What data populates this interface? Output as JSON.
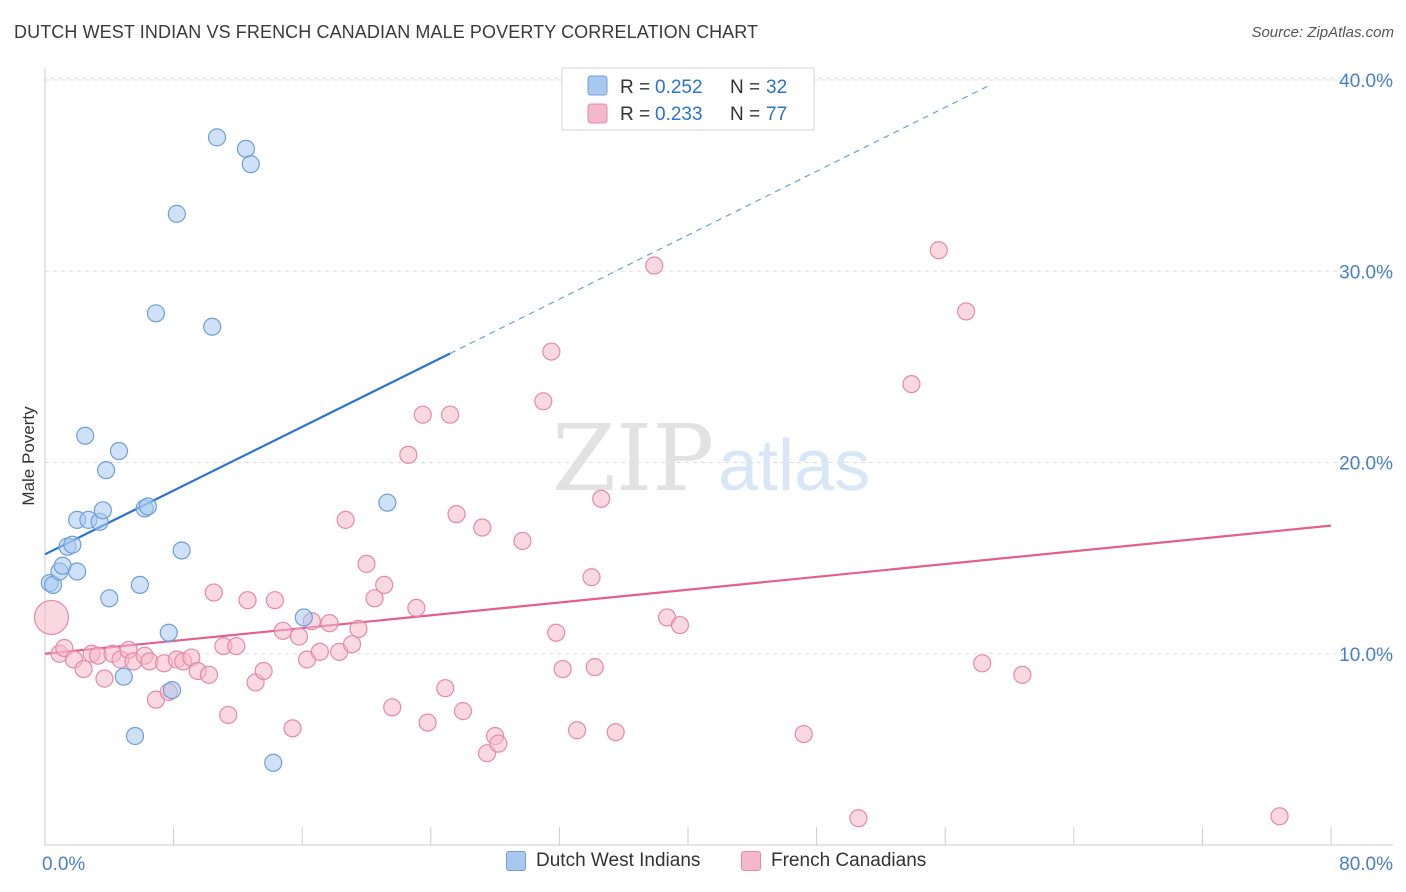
{
  "title": "DUTCH WEST INDIAN VS FRENCH CANADIAN MALE POVERTY CORRELATION CHART",
  "source": "Source: ZipAtlas.com",
  "watermark": {
    "zip": "ZIP",
    "atlas": "atlas"
  },
  "colors": {
    "blue_fill": "#a8c8ef",
    "blue_stroke": "#6f9fd8",
    "blue_line": "#2b73d0",
    "pink_fill": "#f5b8cb",
    "pink_stroke": "#e68aa8",
    "pink_line": "#e0608e",
    "tick_label": "#4a7fc8",
    "grid": "#dddddd"
  },
  "legend": {
    "items": [
      {
        "r_label": "R = ",
        "r_value": "0.252",
        "n_label": "N = ",
        "n_value": "32",
        "color": "#a8c8ef",
        "stroke": "#6f9fd8"
      },
      {
        "r_label": "R = ",
        "r_value": "0.233",
        "n_label": "N = ",
        "n_value": "77",
        "color": "#f5b8cb",
        "stroke": "#e68aa8"
      }
    ]
  },
  "chart_data": {
    "type": "scatter",
    "xlabel": "",
    "ylabel": "Male Poverty",
    "xlim": [
      0,
      80
    ],
    "ylim": [
      0,
      40
    ],
    "x_tick_labels": [
      {
        "value": 0,
        "label": "0.0%"
      },
      {
        "value": 80,
        "label": "80.0%"
      }
    ],
    "y_tick_labels": [
      {
        "value": 10,
        "label": "10.0%"
      },
      {
        "value": 20,
        "label": "20.0%"
      },
      {
        "value": 30,
        "label": "30.0%"
      },
      {
        "value": 40,
        "label": "40.0%"
      }
    ],
    "legend_position": "top-center",
    "grid": true,
    "series": [
      {
        "name": "Dutch West Indians",
        "color": "#a8c8ef",
        "trend": {
          "x0": 0,
          "y0": 15.2,
          "x1": 25.2,
          "y1": 25.7,
          "dashed_to_x": 58.7,
          "dashed_to_y": 39.7
        },
        "points": [
          [
            0.3,
            13.7
          ],
          [
            0.5,
            13.6
          ],
          [
            0.9,
            14.3
          ],
          [
            1.1,
            14.6
          ],
          [
            1.4,
            15.6
          ],
          [
            1.7,
            15.7
          ],
          [
            2.0,
            14.3
          ],
          [
            2.0,
            17.0
          ],
          [
            2.5,
            21.4
          ],
          [
            2.7,
            17.0
          ],
          [
            3.4,
            16.9
          ],
          [
            3.6,
            17.5
          ],
          [
            3.8,
            19.6
          ],
          [
            4.0,
            12.9
          ],
          [
            4.6,
            20.6
          ],
          [
            4.9,
            8.8
          ],
          [
            5.6,
            5.7
          ],
          [
            5.9,
            13.6
          ],
          [
            6.2,
            17.6
          ],
          [
            6.4,
            17.7
          ],
          [
            6.9,
            27.8
          ],
          [
            7.7,
            11.1
          ],
          [
            7.9,
            8.1
          ],
          [
            8.2,
            33.0
          ],
          [
            8.5,
            15.4
          ],
          [
            10.4,
            27.1
          ],
          [
            10.7,
            37.0
          ],
          [
            12.5,
            36.4
          ],
          [
            12.8,
            35.6
          ],
          [
            14.2,
            4.3
          ],
          [
            16.1,
            11.9
          ],
          [
            21.3,
            17.9
          ]
        ]
      },
      {
        "name": "French Canadians",
        "color": "#f5b8cb",
        "trend": {
          "x0": 0,
          "y0": 10.0,
          "x1": 80,
          "y1": 16.7
        },
        "points": [
          [
            0.4,
            11.9
          ],
          [
            0.9,
            10.0
          ],
          [
            1.2,
            10.3
          ],
          [
            1.8,
            9.7
          ],
          [
            2.4,
            9.2
          ],
          [
            2.9,
            10.0
          ],
          [
            3.3,
            9.9
          ],
          [
            3.7,
            8.7
          ],
          [
            4.2,
            10.0
          ],
          [
            4.7,
            9.7
          ],
          [
            5.2,
            10.2
          ],
          [
            5.5,
            9.6
          ],
          [
            6.2,
            9.9
          ],
          [
            6.5,
            9.6
          ],
          [
            6.9,
            7.6
          ],
          [
            7.4,
            9.5
          ],
          [
            7.7,
            8.0
          ],
          [
            8.2,
            9.7
          ],
          [
            8.6,
            9.6
          ],
          [
            9.1,
            9.8
          ],
          [
            9.5,
            9.1
          ],
          [
            10.2,
            8.9
          ],
          [
            10.5,
            13.2
          ],
          [
            11.1,
            10.4
          ],
          [
            11.4,
            6.8
          ],
          [
            11.9,
            10.4
          ],
          [
            12.6,
            12.8
          ],
          [
            13.1,
            8.5
          ],
          [
            13.6,
            9.1
          ],
          [
            14.3,
            12.8
          ],
          [
            14.8,
            11.2
          ],
          [
            15.4,
            6.1
          ],
          [
            15.8,
            10.9
          ],
          [
            16.3,
            9.7
          ],
          [
            16.6,
            11.7
          ],
          [
            17.1,
            10.1
          ],
          [
            17.7,
            11.6
          ],
          [
            18.3,
            10.1
          ],
          [
            18.7,
            17.0
          ],
          [
            19.1,
            10.5
          ],
          [
            19.5,
            11.3
          ],
          [
            20.0,
            14.7
          ],
          [
            20.5,
            12.9
          ],
          [
            21.1,
            13.6
          ],
          [
            21.6,
            7.2
          ],
          [
            22.6,
            20.4
          ],
          [
            23.1,
            12.4
          ],
          [
            23.5,
            22.5
          ],
          [
            23.8,
            6.4
          ],
          [
            24.9,
            8.2
          ],
          [
            25.2,
            22.5
          ],
          [
            25.6,
            17.3
          ],
          [
            26.0,
            7.0
          ],
          [
            27.2,
            16.6
          ],
          [
            27.5,
            4.8
          ],
          [
            28.0,
            5.7
          ],
          [
            28.2,
            5.3
          ],
          [
            29.7,
            15.9
          ],
          [
            31.0,
            23.2
          ],
          [
            31.5,
            25.8
          ],
          [
            31.8,
            11.1
          ],
          [
            32.2,
            9.2
          ],
          [
            33.1,
            6.0
          ],
          [
            34.0,
            14.0
          ],
          [
            34.2,
            9.3
          ],
          [
            34.6,
            18.1
          ],
          [
            35.5,
            5.9
          ],
          [
            37.9,
            30.3
          ],
          [
            38.7,
            11.9
          ],
          [
            39.5,
            11.5
          ],
          [
            47.2,
            5.8
          ],
          [
            50.6,
            1.4
          ],
          [
            53.9,
            24.1
          ],
          [
            55.6,
            31.1
          ],
          [
            57.3,
            27.9
          ],
          [
            58.3,
            9.5
          ],
          [
            60.8,
            8.9
          ],
          [
            76.8,
            1.5
          ]
        ]
      }
    ]
  },
  "bottom_legend": [
    {
      "label": "Dutch West Indians",
      "color": "#a8c8ef",
      "stroke": "#6f9fd8"
    },
    {
      "label": "French Canadians",
      "color": "#f5b8cb",
      "stroke": "#e68aa8"
    }
  ]
}
